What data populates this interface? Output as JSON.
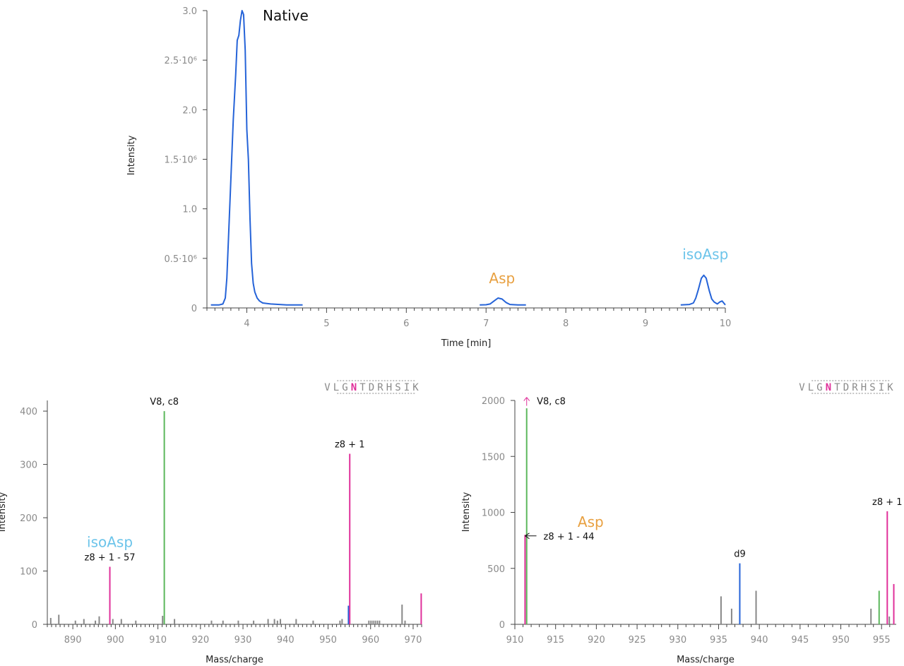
{
  "chart_data": [
    {
      "type": "line",
      "ylabel": "Intensity",
      "xlabel": "Time [min]",
      "xlim": [
        3.5,
        10
      ],
      "ylim": [
        0,
        3000000
      ],
      "x_ticks": [
        4,
        5,
        6,
        7,
        8,
        9,
        10
      ],
      "x_tick_labels": [
        "4",
        "5",
        "6",
        "7",
        "8",
        "9",
        "10"
      ],
      "y_ticks": [
        0,
        500000,
        1000000,
        1500000,
        2000000,
        2500000,
        3000000
      ],
      "y_tick_labels": [
        "0",
        "0.5·10⁶",
        "1.0",
        "1.5·10⁶",
        "2.0",
        "2.5·10⁶",
        "3.0"
      ],
      "line_color": "#2563d8",
      "annotations": [
        {
          "text": "Native",
          "x": 4.2,
          "y": 2900000,
          "color": "#111111"
        },
        {
          "text": "Asp",
          "x": 7.2,
          "y": 250000,
          "color": "#e8a040"
        },
        {
          "text": "isoAsp",
          "x": 9.75,
          "y": 490000,
          "color": "#6cc4ea"
        }
      ],
      "series": [
        {
          "x": [
            3.55,
            3.65,
            3.7,
            3.73,
            3.75,
            3.77,
            3.8,
            3.83,
            3.86,
            3.88,
            3.9,
            3.92,
            3.94,
            3.96,
            3.98,
            4.0,
            4.02,
            4.04,
            4.06,
            4.08,
            4.1,
            4.13,
            4.16,
            4.2,
            4.3,
            4.5,
            4.7
          ],
          "y": [
            30000,
            30000,
            40000,
            100000,
            300000,
            700000,
            1300000,
            1900000,
            2350000,
            2700000,
            2750000,
            2900000,
            3000000,
            2960000,
            2600000,
            1800000,
            1500000,
            900000,
            450000,
            250000,
            160000,
            100000,
            70000,
            50000,
            40000,
            30000,
            30000
          ]
        },
        {
          "x": [
            6.92,
            7.0,
            7.05,
            7.1,
            7.15,
            7.2,
            7.25,
            7.3,
            7.4,
            7.5
          ],
          "y": [
            30000,
            32000,
            40000,
            70000,
            100000,
            90000,
            55000,
            35000,
            30000,
            30000
          ]
        },
        {
          "x": [
            9.44,
            9.55,
            9.6,
            9.63,
            9.66,
            9.7,
            9.73,
            9.76,
            9.8,
            9.83,
            9.86,
            9.9,
            9.93,
            9.96,
            9.99,
            10.0
          ],
          "y": [
            30000,
            35000,
            50000,
            100000,
            180000,
            300000,
            330000,
            300000,
            170000,
            90000,
            60000,
            40000,
            60000,
            70000,
            40000,
            30000
          ]
        }
      ]
    },
    {
      "type": "bar",
      "ylabel": "Intensity",
      "xlabel": "Mass/charge",
      "xlim": [
        884,
        972
      ],
      "ylim": [
        0,
        420
      ],
      "x_ticks": [
        890,
        900,
        910,
        920,
        930,
        940,
        950,
        960,
        970
      ],
      "y_ticks": [
        0,
        100,
        200,
        300,
        400
      ],
      "sequence": [
        "V",
        "L",
        "G",
        "N",
        "T",
        "D",
        "R",
        "H",
        "S",
        "I",
        "K"
      ],
      "highlight_residue": "N",
      "highlight_color": "#e0309a",
      "peaks": [
        {
          "x": 884.8,
          "y": 12,
          "color": "#888888"
        },
        {
          "x": 886.7,
          "y": 18,
          "color": "#888888"
        },
        {
          "x": 890.6,
          "y": 7,
          "color": "#888888"
        },
        {
          "x": 892.6,
          "y": 10,
          "color": "#888888"
        },
        {
          "x": 895.3,
          "y": 7,
          "color": "#888888"
        },
        {
          "x": 896.2,
          "y": 15,
          "color": "#888888"
        },
        {
          "x": 898.7,
          "y": 108,
          "color": "#e0309a"
        },
        {
          "x": 899.4,
          "y": 10,
          "color": "#888888"
        },
        {
          "x": 901.4,
          "y": 10,
          "color": "#888888"
        },
        {
          "x": 904.8,
          "y": 7,
          "color": "#888888"
        },
        {
          "x": 911.1,
          "y": 16,
          "color": "#888888"
        },
        {
          "x": 911.5,
          "y": 400,
          "color": "#5cb85c"
        },
        {
          "x": 913.9,
          "y": 10,
          "color": "#888888"
        },
        {
          "x": 922.6,
          "y": 7,
          "color": "#888888"
        },
        {
          "x": 925.3,
          "y": 7,
          "color": "#888888"
        },
        {
          "x": 928.9,
          "y": 7,
          "color": "#888888"
        },
        {
          "x": 932.5,
          "y": 7,
          "color": "#888888"
        },
        {
          "x": 935.9,
          "y": 10,
          "color": "#888888"
        },
        {
          "x": 937.4,
          "y": 10,
          "color": "#888888"
        },
        {
          "x": 938.1,
          "y": 7,
          "color": "#888888"
        },
        {
          "x": 938.8,
          "y": 10,
          "color": "#888888"
        },
        {
          "x": 942.5,
          "y": 10,
          "color": "#888888"
        },
        {
          "x": 946.5,
          "y": 7,
          "color": "#888888"
        },
        {
          "x": 952.8,
          "y": 7,
          "color": "#888888"
        },
        {
          "x": 953.3,
          "y": 10,
          "color": "#888888"
        },
        {
          "x": 954.8,
          "y": 35,
          "color": "#2563d8"
        },
        {
          "x": 955.1,
          "y": 320,
          "color": "#e0309a"
        },
        {
          "x": 959.6,
          "y": 7,
          "color": "#888888"
        },
        {
          "x": 960.1,
          "y": 7,
          "color": "#888888"
        },
        {
          "x": 960.6,
          "y": 7,
          "color": "#888888"
        },
        {
          "x": 961.1,
          "y": 7,
          "color": "#888888"
        },
        {
          "x": 961.6,
          "y": 7,
          "color": "#888888"
        },
        {
          "x": 962.1,
          "y": 7,
          "color": "#888888"
        },
        {
          "x": 967.4,
          "y": 37,
          "color": "#888888"
        },
        {
          "x": 968.1,
          "y": 7,
          "color": "#888888"
        },
        {
          "x": 971.9,
          "y": 58,
          "color": "#e0309a"
        }
      ],
      "peak_labels": [
        {
          "text": "V8, c8",
          "x": 911.5,
          "y": 400
        },
        {
          "text": "z8 + 1",
          "x": 955.1,
          "y": 320
        },
        {
          "text": "z8 + 1 - 57",
          "x": 898.7,
          "y": 108
        }
      ],
      "annotations": [
        {
          "text": "isoAsp",
          "x": 898.7,
          "y": 145,
          "color": "#6cc4ea"
        }
      ]
    },
    {
      "type": "bar",
      "ylabel": "Intensity",
      "xlabel": "Mass/charge",
      "xlim": [
        910,
        956.8
      ],
      "ylim": [
        0,
        2000
      ],
      "x_ticks": [
        910,
        915,
        920,
        925,
        930,
        935,
        940,
        945,
        950,
        955
      ],
      "y_ticks": [
        0,
        500,
        1000,
        1500,
        2000
      ],
      "sequence": [
        "V",
        "L",
        "G",
        "N",
        "T",
        "D",
        "R",
        "H",
        "S",
        "I",
        "K"
      ],
      "highlight_residue": "N",
      "highlight_color": "#e0309a",
      "peaks": [
        {
          "x": 911.25,
          "y": 800,
          "color": "#e0309a"
        },
        {
          "x": 911.45,
          "y": 1930,
          "color": "#5cb85c"
        },
        {
          "x": 935.3,
          "y": 250,
          "color": "#888888"
        },
        {
          "x": 936.6,
          "y": 140,
          "color": "#888888"
        },
        {
          "x": 937.6,
          "y": 545,
          "color": "#2563d8"
        },
        {
          "x": 939.6,
          "y": 300,
          "color": "#888888"
        },
        {
          "x": 953.7,
          "y": 140,
          "color": "#888888"
        },
        {
          "x": 954.7,
          "y": 300,
          "color": "#5cb85c"
        },
        {
          "x": 955.7,
          "y": 1010,
          "color": "#e0309a"
        },
        {
          "x": 955.95,
          "y": 70,
          "color": "#888888"
        },
        {
          "x": 956.5,
          "y": 360,
          "color": "#e0309a"
        }
      ],
      "peak_labels": [
        {
          "text": "V8, c8",
          "x": 912.0,
          "y": 1990
        },
        {
          "text": "d9",
          "x": 937.6,
          "y": 545
        },
        {
          "text": "z8 + 1",
          "x": 955.7,
          "y": 1010
        },
        {
          "text": "z8 + 1 - 44",
          "x": 912.3,
          "y": 790
        }
      ],
      "annotations": [
        {
          "text": "Asp",
          "x": 919.3,
          "y": 870,
          "color": "#e8a040"
        }
      ]
    }
  ]
}
